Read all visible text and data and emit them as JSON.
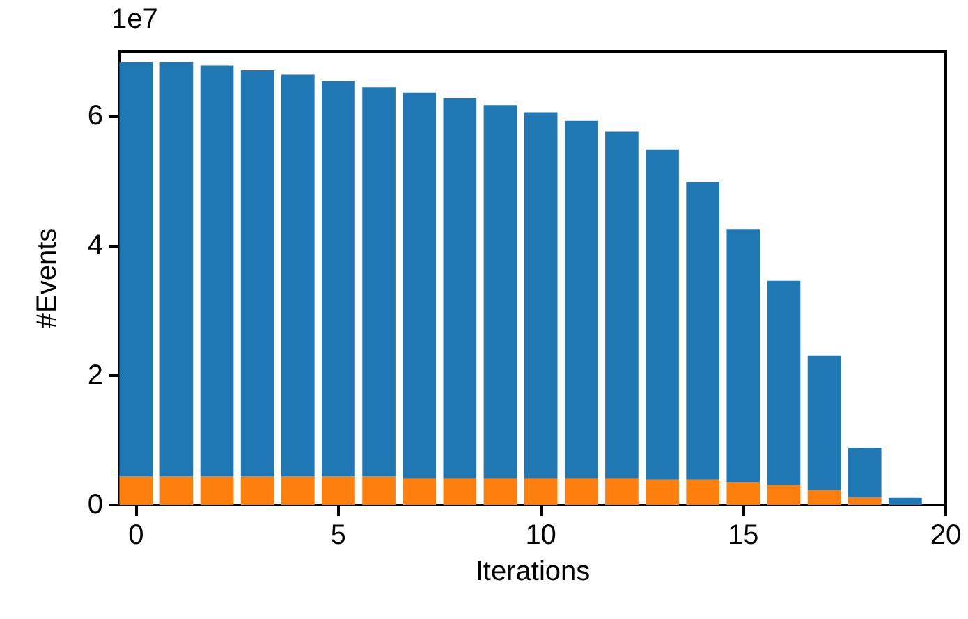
{
  "chart_data": {
    "type": "bar",
    "xlabel": "Iterations",
    "ylabel": "#Events",
    "annotations": [
      "1e7"
    ],
    "stacked": true,
    "x": [
      0,
      1,
      2,
      3,
      4,
      5,
      6,
      7,
      8,
      9,
      10,
      11,
      12,
      13,
      14,
      15,
      16,
      17,
      18,
      19
    ],
    "series": [
      {
        "color": "#ff7f0e",
        "values": [
          0.44,
          0.44,
          0.44,
          0.44,
          0.44,
          0.44,
          0.44,
          0.41,
          0.41,
          0.41,
          0.41,
          0.41,
          0.41,
          0.39,
          0.39,
          0.35,
          0.31,
          0.23,
          0.12,
          0
        ]
      },
      {
        "color": "#1f77b4",
        "values": [
          6.4,
          6.4,
          6.34,
          6.27,
          6.2,
          6.1,
          6.01,
          5.96,
          5.87,
          5.76,
          5.65,
          5.52,
          5.35,
          5.1,
          4.6,
          3.91,
          3.15,
          2.07,
          0.76,
          0.11
        ]
      }
    ],
    "xlim": [
      -0.4,
      20
    ],
    "xticks": [
      0,
      5,
      10,
      15,
      20
    ],
    "ylim": [
      0,
      7
    ],
    "yticks": [
      0,
      2,
      4,
      6
    ],
    "grid": false
  }
}
